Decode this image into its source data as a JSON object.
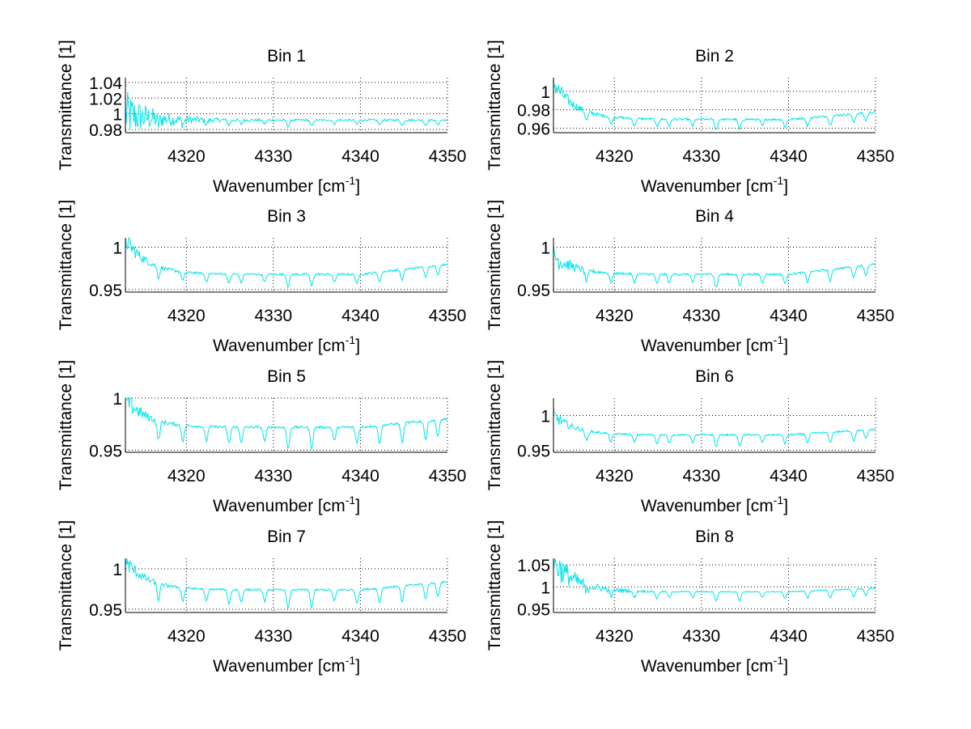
{
  "figure": {
    "background": "#ffffff",
    "line_color": "#00e5e5",
    "grid": "dotted"
  },
  "chart_data": [
    {
      "type": "line",
      "title": "Bin 1",
      "xlabel": "Wavenumber [cm",
      "xlabel_sup": "-1",
      "xlabel_end": "]",
      "ylabel": "Transmittance [1]",
      "xlim": [
        4313,
        4350
      ],
      "ylim": [
        0.976,
        1.046
      ],
      "xticks": [
        4320,
        4330,
        4340,
        4350
      ],
      "yticks": [
        0.98,
        1,
        1.02,
        1.04
      ],
      "ytick_labels": [
        "0.98",
        "1",
        "1.02",
        "1.04"
      ],
      "series": [
        {
          "name": "Bin 1",
          "baseline": 0.992,
          "noise_start": 0.03,
          "noise_decay": 0.6,
          "dip_depth": 0.008,
          "start_value": 1.0
        }
      ]
    },
    {
      "type": "line",
      "title": "Bin 2",
      "xlabel": "Wavenumber [cm",
      "xlabel_sup": "-1",
      "xlabel_end": "]",
      "ylabel": "Transmittance [1]",
      "xlim": [
        4313,
        4350
      ],
      "ylim": [
        0.955,
        1.015
      ],
      "xticks": [
        4320,
        4330,
        4340,
        4350
      ],
      "yticks": [
        0.96,
        0.98,
        1
      ],
      "ytick_labels": [
        "0.96",
        "0.98",
        "1"
      ],
      "series": [
        {
          "name": "Bin 2",
          "baseline": 0.9695,
          "noise_start": 0.012,
          "noise_decay": 0.3,
          "dip_depth": 0.012,
          "start_value": 1.01,
          "end_rise": 0.008
        }
      ]
    },
    {
      "type": "line",
      "title": "Bin 3",
      "xlabel": "Wavenumber [cm",
      "xlabel_sup": "-1",
      "xlabel_end": "]",
      "ylabel": "Transmittance [1]",
      "xlim": [
        4313,
        4350
      ],
      "ylim": [
        0.947,
        1.011
      ],
      "xticks": [
        4320,
        4330,
        4340,
        4350
      ],
      "yticks": [
        0.95,
        1
      ],
      "ytick_labels": [
        "0.95",
        "1"
      ],
      "series": [
        {
          "name": "Bin 3",
          "baseline": 0.968,
          "noise_start": 0.012,
          "noise_decay": 0.3,
          "dip_depth": 0.015,
          "start_value": 1.01,
          "end_rise": 0.012
        }
      ]
    },
    {
      "type": "line",
      "title": "Bin 4",
      "xlabel": "Wavenumber [cm",
      "xlabel_sup": "-1",
      "xlabel_end": "]",
      "ylabel": "Transmittance [1]",
      "xlim": [
        4313,
        4350
      ],
      "ylim": [
        0.947,
        1.011
      ],
      "xticks": [
        4320,
        4330,
        4340,
        4350
      ],
      "yticks": [
        0.95,
        1
      ],
      "ytick_labels": [
        "0.95",
        "1"
      ],
      "series": [
        {
          "name": "Bin 4",
          "baseline": 0.968,
          "noise_start": 0.015,
          "noise_decay": 0.3,
          "dip_depth": 0.016,
          "start_value": 0.99,
          "end_rise": 0.012
        }
      ]
    },
    {
      "type": "line",
      "title": "Bin 5",
      "xlabel": "Wavenumber [cm",
      "xlabel_sup": "-1",
      "xlabel_end": "]",
      "ylabel": "Transmittance [1]",
      "xlim": [
        4313,
        4350
      ],
      "ylim": [
        0.948,
        1.0
      ],
      "xticks": [
        4320,
        4330,
        4340,
        4350
      ],
      "yticks": [
        0.95,
        1
      ],
      "ytick_labels": [
        "0.95",
        "1"
      ],
      "series": [
        {
          "name": "Bin 5",
          "baseline": 0.972,
          "noise_start": 0.012,
          "noise_decay": 0.3,
          "dip_depth": 0.022,
          "start_value": 1.0,
          "end_rise": 0.008
        }
      ]
    },
    {
      "type": "line",
      "title": "Bin 6",
      "xlabel": "Wavenumber [cm",
      "xlabel_sup": "-1",
      "xlabel_end": "]",
      "ylabel": "Transmittance [1]",
      "xlim": [
        4313,
        4350
      ],
      "ylim": [
        0.947,
        1.025
      ],
      "xticks": [
        4320,
        4330,
        4340,
        4350
      ],
      "yticks": [
        0.95,
        1
      ],
      "ytick_labels": [
        "0.95",
        "1"
      ],
      "series": [
        {
          "name": "Bin 6",
          "baseline": 0.972,
          "noise_start": 0.01,
          "noise_decay": 0.3,
          "dip_depth": 0.018,
          "start_value": 1.0,
          "end_rise": 0.008
        }
      ]
    },
    {
      "type": "line",
      "title": "Bin 7",
      "xlabel": "Wavenumber [cm",
      "xlabel_sup": "-1",
      "xlabel_end": "]",
      "ylabel": "Transmittance [1]",
      "xlim": [
        4313,
        4350
      ],
      "ylim": [
        0.946,
        1.013
      ],
      "xticks": [
        4320,
        4330,
        4340,
        4350
      ],
      "yticks": [
        0.95,
        1
      ],
      "ytick_labels": [
        "0.95",
        "1"
      ],
      "series": [
        {
          "name": "Bin 7",
          "baseline": 0.974,
          "noise_start": 0.012,
          "noise_decay": 0.3,
          "dip_depth": 0.024,
          "start_value": 1.01,
          "end_rise": 0.01
        }
      ]
    },
    {
      "type": "line",
      "title": "Bin 8",
      "xlabel": "Wavenumber [cm",
      "xlabel_sup": "-1",
      "xlabel_end": "]",
      "ylabel": "Transmittance [1]",
      "xlim": [
        4313,
        4350
      ],
      "ylim": [
        0.942,
        1.065
      ],
      "xticks": [
        4320,
        4330,
        4340,
        4350
      ],
      "yticks": [
        0.95,
        1,
        1.05
      ],
      "ytick_labels": [
        "0.95",
        "1",
        "1.05"
      ],
      "series": [
        {
          "name": "Bin 8",
          "baseline": 0.989,
          "noise_start": 0.04,
          "noise_decay": 0.5,
          "dip_depth": 0.022,
          "start_value": 1.06,
          "end_rise": 0.008
        }
      ]
    }
  ],
  "dip_positions": [
    4316.8,
    4319.6,
    4322.3,
    4324.9,
    4326.3,
    4329.0,
    4331.7,
    4334.4,
    4337.0,
    4339.6,
    4342.2,
    4344.8,
    4347.5,
    4348.9
  ]
}
